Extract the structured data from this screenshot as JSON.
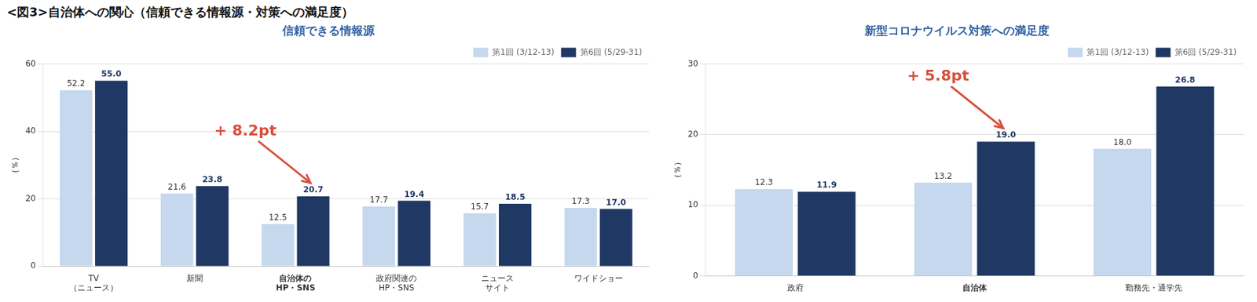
{
  "title": "<図3>自治体への関心（信頼できる情報源・対策への満足度）",
  "chart_data": [
    {
      "type": "bar",
      "title": "信頼できる情報源",
      "categories": [
        "TV\n（ニュース）",
        "新聞",
        "自治体の\nHP・SNS",
        "政府関連の\nHP・SNS",
        "ニュース\nサイト",
        "ワイドショー"
      ],
      "series": [
        {
          "name": "第1回 (3/12-13)",
          "color": "#c5d8ee",
          "values": [
            52.2,
            21.6,
            12.5,
            17.7,
            15.7,
            17.3
          ]
        },
        {
          "name": "第6回 (5/29-31)",
          "color": "#1f3864",
          "values": [
            55.0,
            23.8,
            20.7,
            19.4,
            18.5,
            17.0
          ],
          "value_labels": [
            "55.0",
            "23.8",
            "20.7",
            "19.4",
            "18.5",
            "17.0"
          ]
        }
      ],
      "ylabel": "（％）",
      "ylim": [
        0,
        60
      ],
      "yticks": [
        0,
        20,
        40,
        60
      ],
      "grid": true,
      "legend": "upper right",
      "data_labels": true,
      "annotations": [
        {
          "text": "+ 8.2pt",
          "category": "自治体の\nHP・SNS",
          "series": "第6回 (5/29-31)",
          "color": "#d94f3d"
        }
      ]
    },
    {
      "type": "bar",
      "title": "新型コロナウイルス対策への満足度",
      "categories": [
        "政府",
        "自治体",
        "勤務先・通学先"
      ],
      "series": [
        {
          "name": "第1回 (3/12-13)",
          "color": "#c5d8ee",
          "values": [
            12.3,
            13.2,
            18.0
          ],
          "value_labels": [
            "12.3",
            "13.2",
            "18.0"
          ]
        },
        {
          "name": "第6回 (5/29-31)",
          "color": "#1f3864",
          "values": [
            11.9,
            19.0,
            26.8
          ],
          "value_labels": [
            "11.9",
            "19.0",
            "26.8"
          ]
        }
      ],
      "ylabel": "（％）",
      "ylim": [
        0,
        30
      ],
      "yticks": [
        0,
        10,
        20,
        30
      ],
      "grid": true,
      "legend": "upper right",
      "data_labels": true,
      "annotations": [
        {
          "text": "+ 5.8pt",
          "category": "自治体",
          "series": "第6回 (5/29-31)",
          "color": "#d94f3d"
        }
      ]
    }
  ]
}
